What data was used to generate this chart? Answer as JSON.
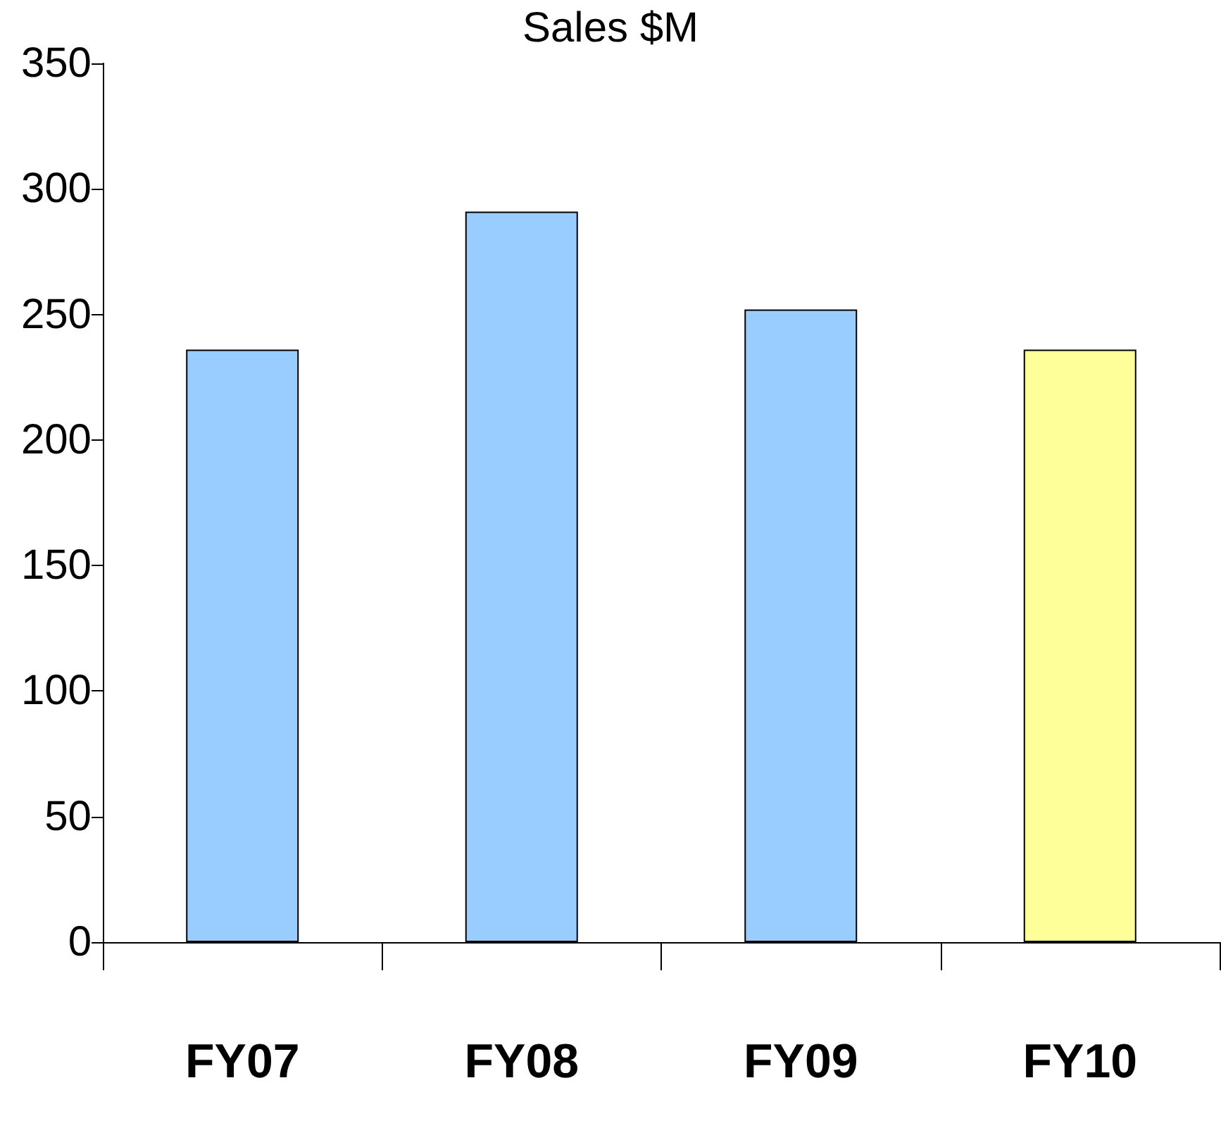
{
  "chart_data": {
    "type": "bar",
    "title": "Sales $M",
    "categories": [
      "FY07",
      "FY08",
      "FY09",
      "FY10"
    ],
    "values": [
      236,
      291,
      252,
      236
    ],
    "colors": [
      "#99ccff",
      "#99ccff",
      "#99ccff",
      "#ffff99"
    ],
    "ylim": [
      0,
      350
    ],
    "yticks": [
      0,
      50,
      100,
      150,
      200,
      250,
      300,
      350
    ],
    "grid": false
  }
}
